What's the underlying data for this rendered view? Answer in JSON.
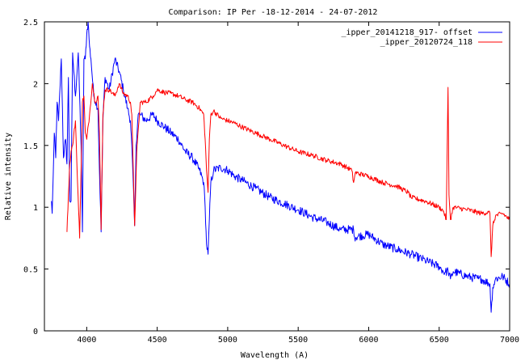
{
  "chart_data": {
    "type": "line",
    "title": "Comparison: IP Per -18-12-2014 - 24-07-2012",
    "xlabel": "Wavelength (A)",
    "ylabel": "Relative intensity",
    "xlim": [
      3700,
      7000
    ],
    "ylim": [
      0,
      2.5
    ],
    "xticks": [
      4000,
      4500,
      5000,
      5500,
      6000,
      6500,
      7000
    ],
    "yticks": [
      0,
      0.5,
      1,
      1.5,
      2,
      2.5
    ],
    "xtick_labels": [
      "4000",
      "4500",
      "5000",
      "5500",
      "6000",
      "6500",
      "7000"
    ],
    "ytick_labels": [
      "0",
      "0.5",
      "1",
      "1.5",
      "2",
      "2.5"
    ],
    "grid": false,
    "legend_position": "top-right",
    "series": [
      {
        "name": "_ipper_20141218_917- offset",
        "color": "#0000ff",
        "x": [
          3750,
          3755,
          3770,
          3780,
          3790,
          3800,
          3820,
          3835,
          3850,
          3860,
          3870,
          3880,
          3889,
          3900,
          3920,
          3940,
          3960,
          3970,
          3980,
          3990,
          4000,
          4010,
          4020,
          4030,
          4050,
          4080,
          4090,
          4102,
          4115,
          4130,
          4160,
          4200,
          4230,
          4260,
          4290,
          4310,
          4320,
          4340,
          4350,
          4365,
          4380,
          4420,
          4470,
          4500,
          4550,
          4600,
          4650,
          4700,
          4750,
          4800,
          4830,
          4840,
          4850,
          4861,
          4870,
          4880,
          4900,
          4950,
          5000,
          5050,
          5100,
          5200,
          5300,
          5400,
          5500,
          5600,
          5700,
          5800,
          5893,
          5900,
          6000,
          6100,
          6200,
          6300,
          6400,
          6500,
          6540,
          6563,
          6580,
          6600,
          6700,
          6780,
          6800,
          6860,
          6869,
          6880,
          6900,
          6950,
          7000
        ],
        "y": [
          1.05,
          0.95,
          1.6,
          1.4,
          1.85,
          1.7,
          2.2,
          1.4,
          1.55,
          1.35,
          2.05,
          1.05,
          1.05,
          2.25,
          1.9,
          2.25,
          1.5,
          0.8,
          2.2,
          2.2,
          2.4,
          2.5,
          2.3,
          2.2,
          1.9,
          1.8,
          1.3,
          0.8,
          1.7,
          2.05,
          1.95,
          2.2,
          2.1,
          1.95,
          1.8,
          1.7,
          1.5,
          0.85,
          1.5,
          1.75,
          1.75,
          1.7,
          1.75,
          1.7,
          1.65,
          1.6,
          1.55,
          1.45,
          1.4,
          1.3,
          1.2,
          1.0,
          0.7,
          0.62,
          0.9,
          1.2,
          1.3,
          1.32,
          1.3,
          1.25,
          1.22,
          1.15,
          1.08,
          1.03,
          0.98,
          0.92,
          0.88,
          0.82,
          0.82,
          0.76,
          0.78,
          0.7,
          0.66,
          0.62,
          0.57,
          0.52,
          0.47,
          0.49,
          0.42,
          0.48,
          0.44,
          0.42,
          0.42,
          0.38,
          0.15,
          0.35,
          0.42,
          0.44,
          0.38
        ]
      },
      {
        "name": "_ipper_20120724_118",
        "color": "#ff0000",
        "x": [
          3860,
          3870,
          3880,
          3889,
          3900,
          3920,
          3935,
          3950,
          3970,
          3980,
          3990,
          4000,
          4020,
          4040,
          4060,
          4080,
          4090,
          4102,
          4115,
          4130,
          4160,
          4200,
          4230,
          4260,
          4290,
          4310,
          4320,
          4340,
          4355,
          4380,
          4420,
          4470,
          4500,
          4550,
          4600,
          4650,
          4700,
          4750,
          4800,
          4830,
          4840,
          4850,
          4861,
          4870,
          4880,
          4900,
          4950,
          5000,
          5050,
          5100,
          5200,
          5300,
          5400,
          5500,
          5600,
          5700,
          5800,
          5880,
          5893,
          5905,
          6000,
          6100,
          6200,
          6280,
          6300,
          6400,
          6500,
          6530,
          6550,
          6556,
          6563,
          6570,
          6580,
          6600,
          6700,
          6800,
          6850,
          6860,
          6869,
          6880,
          6900,
          6950,
          7000
        ],
        "y": [
          0.8,
          1.1,
          1.35,
          1.45,
          1.5,
          1.7,
          1.2,
          0.75,
          1.85,
          1.9,
          1.6,
          1.55,
          1.75,
          2.0,
          1.85,
          1.9,
          1.6,
          0.82,
          1.75,
          1.95,
          1.95,
          1.9,
          2.0,
          1.92,
          1.9,
          1.85,
          1.75,
          0.85,
          1.45,
          1.85,
          1.85,
          1.9,
          1.95,
          1.93,
          1.92,
          1.9,
          1.87,
          1.85,
          1.8,
          1.75,
          1.55,
          1.3,
          1.12,
          1.55,
          1.75,
          1.78,
          1.72,
          1.7,
          1.68,
          1.65,
          1.6,
          1.55,
          1.5,
          1.45,
          1.42,
          1.38,
          1.35,
          1.3,
          1.2,
          1.28,
          1.25,
          1.2,
          1.17,
          1.12,
          1.08,
          1.05,
          1.0,
          0.97,
          0.9,
          1.4,
          1.97,
          1.1,
          0.9,
          1.0,
          0.98,
          0.95,
          0.96,
          0.95,
          0.6,
          0.85,
          0.93,
          0.95,
          0.9
        ]
      }
    ]
  }
}
